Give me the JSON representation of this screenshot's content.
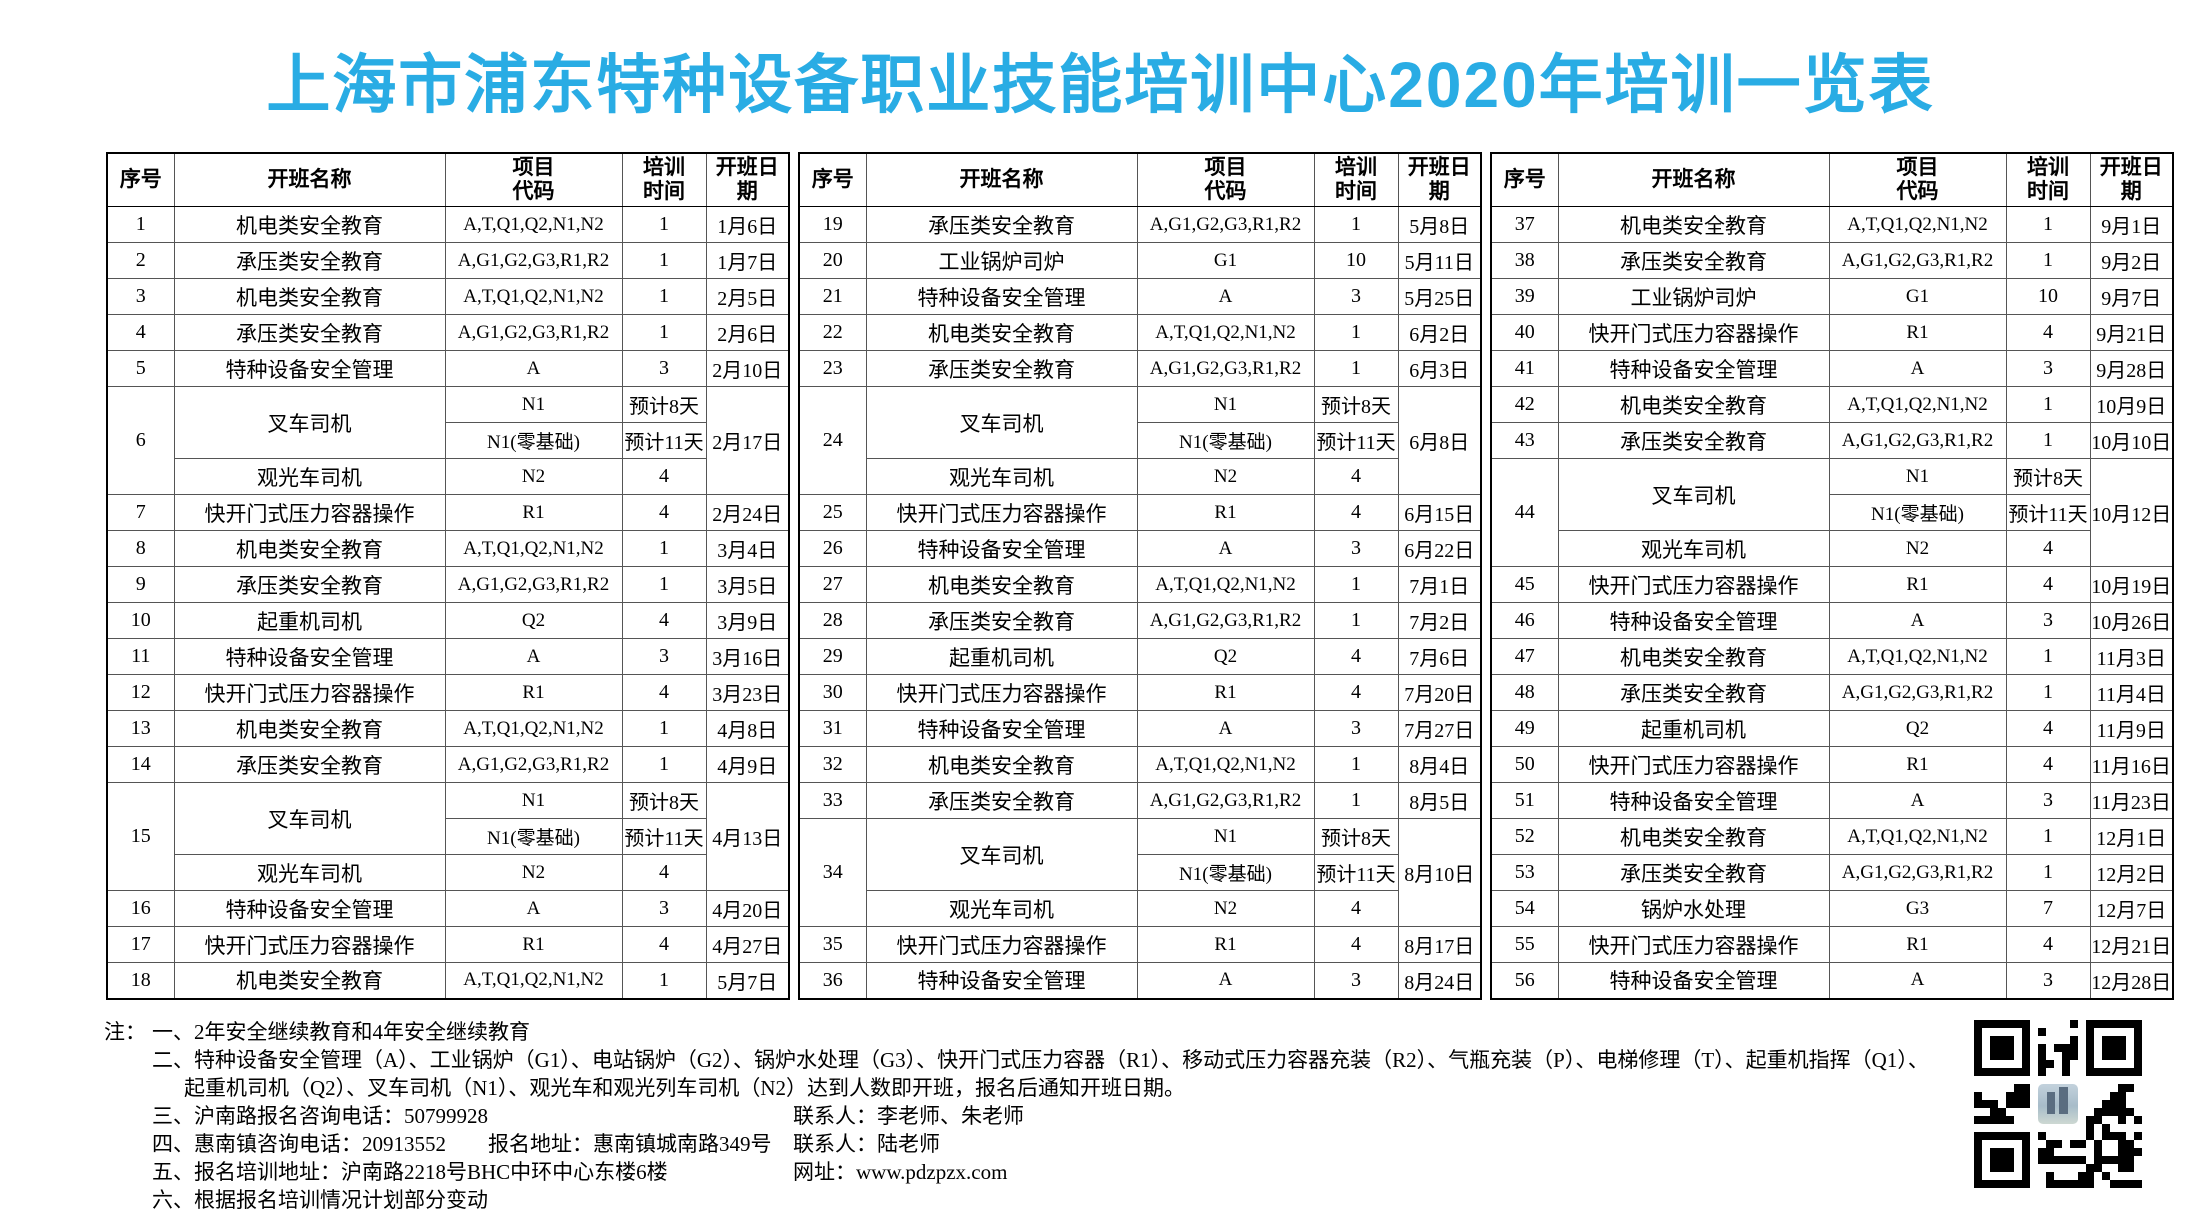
{
  "title": "上海市浦东特种设备职业技能培训中心2020年培训一览表",
  "colors": {
    "title_accent": "#29ace4",
    "table_border": "#000000"
  },
  "columns": [
    "序号",
    "开班名称",
    "项目\n代码",
    "培训\n时间",
    "开班日期"
  ],
  "tables": [
    {
      "rows": [
        {
          "no": "1",
          "name": "机电类安全教育",
          "code": "A,T,Q1,Q2,N1,N2",
          "time": "1",
          "date": "1月6日"
        },
        {
          "no": "2",
          "name": "承压类安全教育",
          "code": "A,G1,G2,G3,R1,R2",
          "time": "1",
          "date": "1月7日"
        },
        {
          "no": "3",
          "name": "机电类安全教育",
          "code": "A,T,Q1,Q2,N1,N2",
          "time": "1",
          "date": "2月5日"
        },
        {
          "no": "4",
          "name": "承压类安全教育",
          "code": "A,G1,G2,G3,R1,R2",
          "time": "1",
          "date": "2月6日"
        },
        {
          "no": "5",
          "name": "特种设备安全管理",
          "code": "A",
          "time": "3",
          "date": "2月10日"
        },
        {
          "no": "6",
          "name1": "叉车司机",
          "name2": "观光车司机",
          "sub": [
            [
              "N1",
              "预计8天"
            ],
            [
              "N1(零基础)",
              "预计11天"
            ],
            [
              "N2",
              "4"
            ]
          ],
          "date": "2月17日"
        },
        {
          "no": "7",
          "name": "快开门式压力容器操作",
          "code": "R1",
          "time": "4",
          "date": "2月24日"
        },
        {
          "no": "8",
          "name": "机电类安全教育",
          "code": "A,T,Q1,Q2,N1,N2",
          "time": "1",
          "date": "3月4日"
        },
        {
          "no": "9",
          "name": "承压类安全教育",
          "code": "A,G1,G2,G3,R1,R2",
          "time": "1",
          "date": "3月5日"
        },
        {
          "no": "10",
          "name": "起重机司机",
          "code": "Q2",
          "time": "4",
          "date": "3月9日"
        },
        {
          "no": "11",
          "name": "特种设备安全管理",
          "code": "A",
          "time": "3",
          "date": "3月16日"
        },
        {
          "no": "12",
          "name": "快开门式压力容器操作",
          "code": "R1",
          "time": "4",
          "date": "3月23日"
        },
        {
          "no": "13",
          "name": "机电类安全教育",
          "code": "A,T,Q1,Q2,N1,N2",
          "time": "1",
          "date": "4月8日"
        },
        {
          "no": "14",
          "name": "承压类安全教育",
          "code": "A,G1,G2,G3,R1,R2",
          "time": "1",
          "date": "4月9日"
        },
        {
          "no": "15",
          "name1": "叉车司机",
          "name2": "观光车司机",
          "sub": [
            [
              "N1",
              "预计8天"
            ],
            [
              "N1(零基础)",
              "预计11天"
            ],
            [
              "N2",
              "4"
            ]
          ],
          "date": "4月13日"
        },
        {
          "no": "16",
          "name": "特种设备安全管理",
          "code": "A",
          "time": "3",
          "date": "4月20日"
        },
        {
          "no": "17",
          "name": "快开门式压力容器操作",
          "code": "R1",
          "time": "4",
          "date": "4月27日"
        },
        {
          "no": "18",
          "name": "机电类安全教育",
          "code": "A,T,Q1,Q2,N1,N2",
          "time": "1",
          "date": "5月7日"
        }
      ]
    },
    {
      "rows": [
        {
          "no": "19",
          "name": "承压类安全教育",
          "code": "A,G1,G2,G3,R1,R2",
          "time": "1",
          "date": "5月8日"
        },
        {
          "no": "20",
          "name": "工业锅炉司炉",
          "code": "G1",
          "time": "10",
          "date": "5月11日"
        },
        {
          "no": "21",
          "name": "特种设备安全管理",
          "code": "A",
          "time": "3",
          "date": "5月25日"
        },
        {
          "no": "22",
          "name": "机电类安全教育",
          "code": "A,T,Q1,Q2,N1,N2",
          "time": "1",
          "date": "6月2日"
        },
        {
          "no": "23",
          "name": "承压类安全教育",
          "code": "A,G1,G2,G3,R1,R2",
          "time": "1",
          "date": "6月3日"
        },
        {
          "no": "24",
          "name1": "叉车司机",
          "name2": "观光车司机",
          "sub": [
            [
              "N1",
              "预计8天"
            ],
            [
              "N1(零基础)",
              "预计11天"
            ],
            [
              "N2",
              "4"
            ]
          ],
          "date": "6月8日"
        },
        {
          "no": "25",
          "name": "快开门式压力容器操作",
          "code": "R1",
          "time": "4",
          "date": "6月15日"
        },
        {
          "no": "26",
          "name": "特种设备安全管理",
          "code": "A",
          "time": "3",
          "date": "6月22日"
        },
        {
          "no": "27",
          "name": "机电类安全教育",
          "code": "A,T,Q1,Q2,N1,N2",
          "time": "1",
          "date": "7月1日"
        },
        {
          "no": "28",
          "name": "承压类安全教育",
          "code": "A,G1,G2,G3,R1,R2",
          "time": "1",
          "date": "7月2日"
        },
        {
          "no": "29",
          "name": "起重机司机",
          "code": "Q2",
          "time": "4",
          "date": "7月6日"
        },
        {
          "no": "30",
          "name": "快开门式压力容器操作",
          "code": "R1",
          "time": "4",
          "date": "7月20日"
        },
        {
          "no": "31",
          "name": "特种设备安全管理",
          "code": "A",
          "time": "3",
          "date": "7月27日"
        },
        {
          "no": "32",
          "name": "机电类安全教育",
          "code": "A,T,Q1,Q2,N1,N2",
          "time": "1",
          "date": "8月4日"
        },
        {
          "no": "33",
          "name": "承压类安全教育",
          "code": "A,G1,G2,G3,R1,R2",
          "time": "1",
          "date": "8月5日"
        },
        {
          "no": "34",
          "name1": "叉车司机",
          "name2": "观光车司机",
          "sub": [
            [
              "N1",
              "预计8天"
            ],
            [
              "N1(零基础)",
              "预计11天"
            ],
            [
              "N2",
              "4"
            ]
          ],
          "date": "8月10日"
        },
        {
          "no": "35",
          "name": "快开门式压力容器操作",
          "code": "R1",
          "time": "4",
          "date": "8月17日"
        },
        {
          "no": "36",
          "name": "特种设备安全管理",
          "code": "A",
          "time": "3",
          "date": "8月24日"
        }
      ]
    },
    {
      "rows": [
        {
          "no": "37",
          "name": "机电类安全教育",
          "code": "A,T,Q1,Q2,N1,N2",
          "time": "1",
          "date": "9月1日"
        },
        {
          "no": "38",
          "name": "承压类安全教育",
          "code": "A,G1,G2,G3,R1,R2",
          "time": "1",
          "date": "9月2日"
        },
        {
          "no": "39",
          "name": "工业锅炉司炉",
          "code": "G1",
          "time": "10",
          "date": "9月7日"
        },
        {
          "no": "40",
          "name": "快开门式压力容器操作",
          "code": "R1",
          "time": "4",
          "date": "9月21日"
        },
        {
          "no": "41",
          "name": "特种设备安全管理",
          "code": "A",
          "time": "3",
          "date": "9月28日"
        },
        {
          "no": "42",
          "name": "机电类安全教育",
          "code": "A,T,Q1,Q2,N1,N2",
          "time": "1",
          "date": "10月9日"
        },
        {
          "no": "43",
          "name": "承压类安全教育",
          "code": "A,G1,G2,G3,R1,R2",
          "time": "1",
          "date": "10月10日"
        },
        {
          "no": "44",
          "name1": "叉车司机",
          "name2": "观光车司机",
          "sub": [
            [
              "N1",
              "预计8天"
            ],
            [
              "N1(零基础)",
              "预计11天"
            ],
            [
              "N2",
              "4"
            ]
          ],
          "date": "10月12日"
        },
        {
          "no": "45",
          "name": "快开门式压力容器操作",
          "code": "R1",
          "time": "4",
          "date": "10月19日"
        },
        {
          "no": "46",
          "name": "特种设备安全管理",
          "code": "A",
          "time": "3",
          "date": "10月26日"
        },
        {
          "no": "47",
          "name": "机电类安全教育",
          "code": "A,T,Q1,Q2,N1,N2",
          "time": "1",
          "date": "11月3日"
        },
        {
          "no": "48",
          "name": "承压类安全教育",
          "code": "A,G1,G2,G3,R1,R2",
          "time": "1",
          "date": "11月4日"
        },
        {
          "no": "49",
          "name": "起重机司机",
          "code": "Q2",
          "time": "4",
          "date": "11月9日"
        },
        {
          "no": "50",
          "name": "快开门式压力容器操作",
          "code": "R1",
          "time": "4",
          "date": "11月16日"
        },
        {
          "no": "51",
          "name": "特种设备安全管理",
          "code": "A",
          "time": "3",
          "date": "11月23日"
        },
        {
          "no": "52",
          "name": "机电类安全教育",
          "code": "A,T,Q1,Q2,N1,N2",
          "time": "1",
          "date": "12月1日"
        },
        {
          "no": "53",
          "name": "承压类安全教育",
          "code": "A,G1,G2,G3,R1,R2",
          "time": "1",
          "date": "12月2日"
        },
        {
          "no": "54",
          "name": "锅炉水处理",
          "code": "G3",
          "time": "7",
          "date": "12月7日"
        },
        {
          "no": "55",
          "name": "快开门式压力容器操作",
          "code": "R1",
          "time": "4",
          "date": "12月21日"
        },
        {
          "no": "56",
          "name": "特种设备安全管理",
          "code": "A",
          "time": "3",
          "date": "12月28日"
        }
      ]
    }
  ],
  "notes": {
    "prefix": "注：",
    "line1": "一、2年安全继续教育和4年安全继续教育",
    "line2": "二、特种设备安全管理（A）、工业锅炉（G1）、电站锅炉（G2）、锅炉水处理（G3）、快开门式压力容器（R1）、移动式压力容器充装（R2）、气瓶充装（P）、电梯修理（T）、起重机指挥（Q1）、",
    "line2b": "起重机司机（Q2）、叉车司机（N1）、观光车和观光列车司机（N2）达到人数即开班，报名后通知开班日期。",
    "line3": "三、沪南路报名咨询电话：50799928",
    "line3_contact": "联系人：李老师、朱老师",
    "line4": "四、惠南镇咨询电话：20913552",
    "line4_addr": "报名地址：惠南镇城南路349号",
    "line4_contact": "联系人：陆老师",
    "line5": "五、报名培训地址：沪南路2218号BHC中环中心东楼6楼",
    "line5_web": "网址：www.pdzpzx.com",
    "line6": "六、根据报名培训情况计划部分变动"
  }
}
